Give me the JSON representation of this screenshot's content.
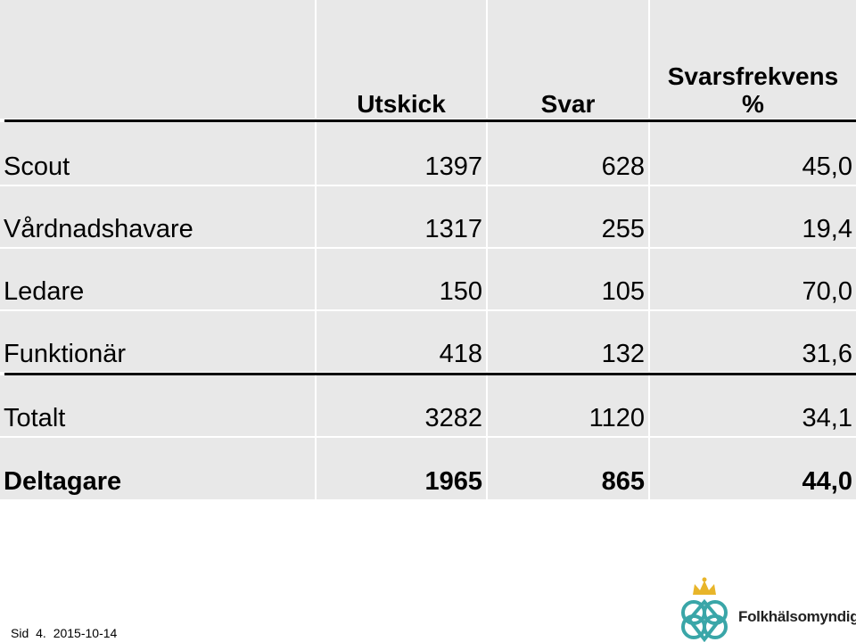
{
  "table": {
    "columns": [
      "Utskick",
      "Svar",
      "Svarsfrekvens %"
    ],
    "rows": [
      [
        "Scout",
        "1397",
        "628",
        "45,0"
      ],
      [
        "Vårdnadshavare",
        "1317",
        "255",
        "19,4"
      ],
      [
        "Ledare",
        "150",
        "105",
        "70,0"
      ],
      [
        "Funktionär",
        "418",
        "132",
        "31,6"
      ],
      [
        "Totalt",
        "3282",
        "1120",
        "34,1"
      ],
      [
        "Deltagare",
        "1965",
        "865",
        "44,0"
      ]
    ]
  },
  "footer": {
    "label": "Sid",
    "page": "4.",
    "date": "2015-10-14"
  },
  "logo": {
    "text": "Folkhälsomyndigheten"
  }
}
